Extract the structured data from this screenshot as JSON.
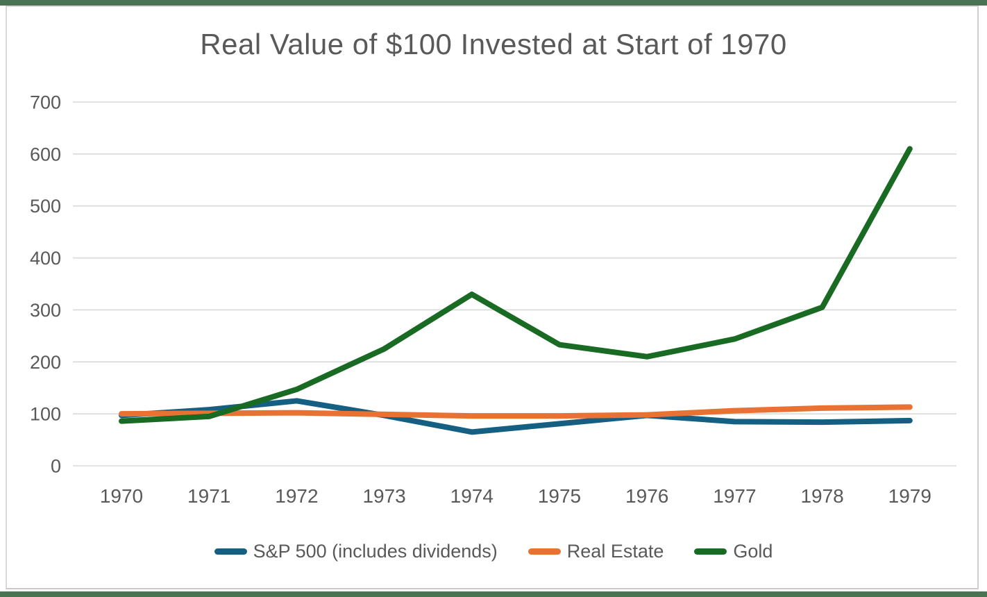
{
  "frame": {
    "top_bar_color": "#4a7354",
    "bottom_bar_color": "#4a7354",
    "border_color": "#d9d9d9",
    "background": "#ffffff"
  },
  "chart_data": {
    "type": "line",
    "title": "Real Value of $100 Invested at Start of 1970",
    "categories": [
      "1970",
      "1971",
      "1972",
      "1973",
      "1974",
      "1975",
      "1976",
      "1977",
      "1978",
      "1979"
    ],
    "series": [
      {
        "name": "S&P 500 (includes dividends)",
        "color": "#156082",
        "values": [
          97,
          108,
          125,
          97,
          65,
          81,
          97,
          85,
          84,
          87
        ]
      },
      {
        "name": "Real Estate",
        "color": "#E97132",
        "values": [
          100,
          101,
          102,
          99,
          96,
          96,
          98,
          106,
          111,
          113
        ]
      },
      {
        "name": "Gold",
        "color": "#196B24",
        "values": [
          86,
          95,
          147,
          225,
          330,
          233,
          210,
          244,
          305,
          610
        ]
      }
    ],
    "ylim": [
      0,
      700
    ],
    "ytick_step": 100,
    "yticks": [
      0,
      100,
      200,
      300,
      400,
      500,
      600,
      700
    ],
    "grid": true,
    "legend_position": "bottom",
    "text_color": "#595959",
    "gridline_color": "#d9d9d9",
    "line_width": 8
  }
}
